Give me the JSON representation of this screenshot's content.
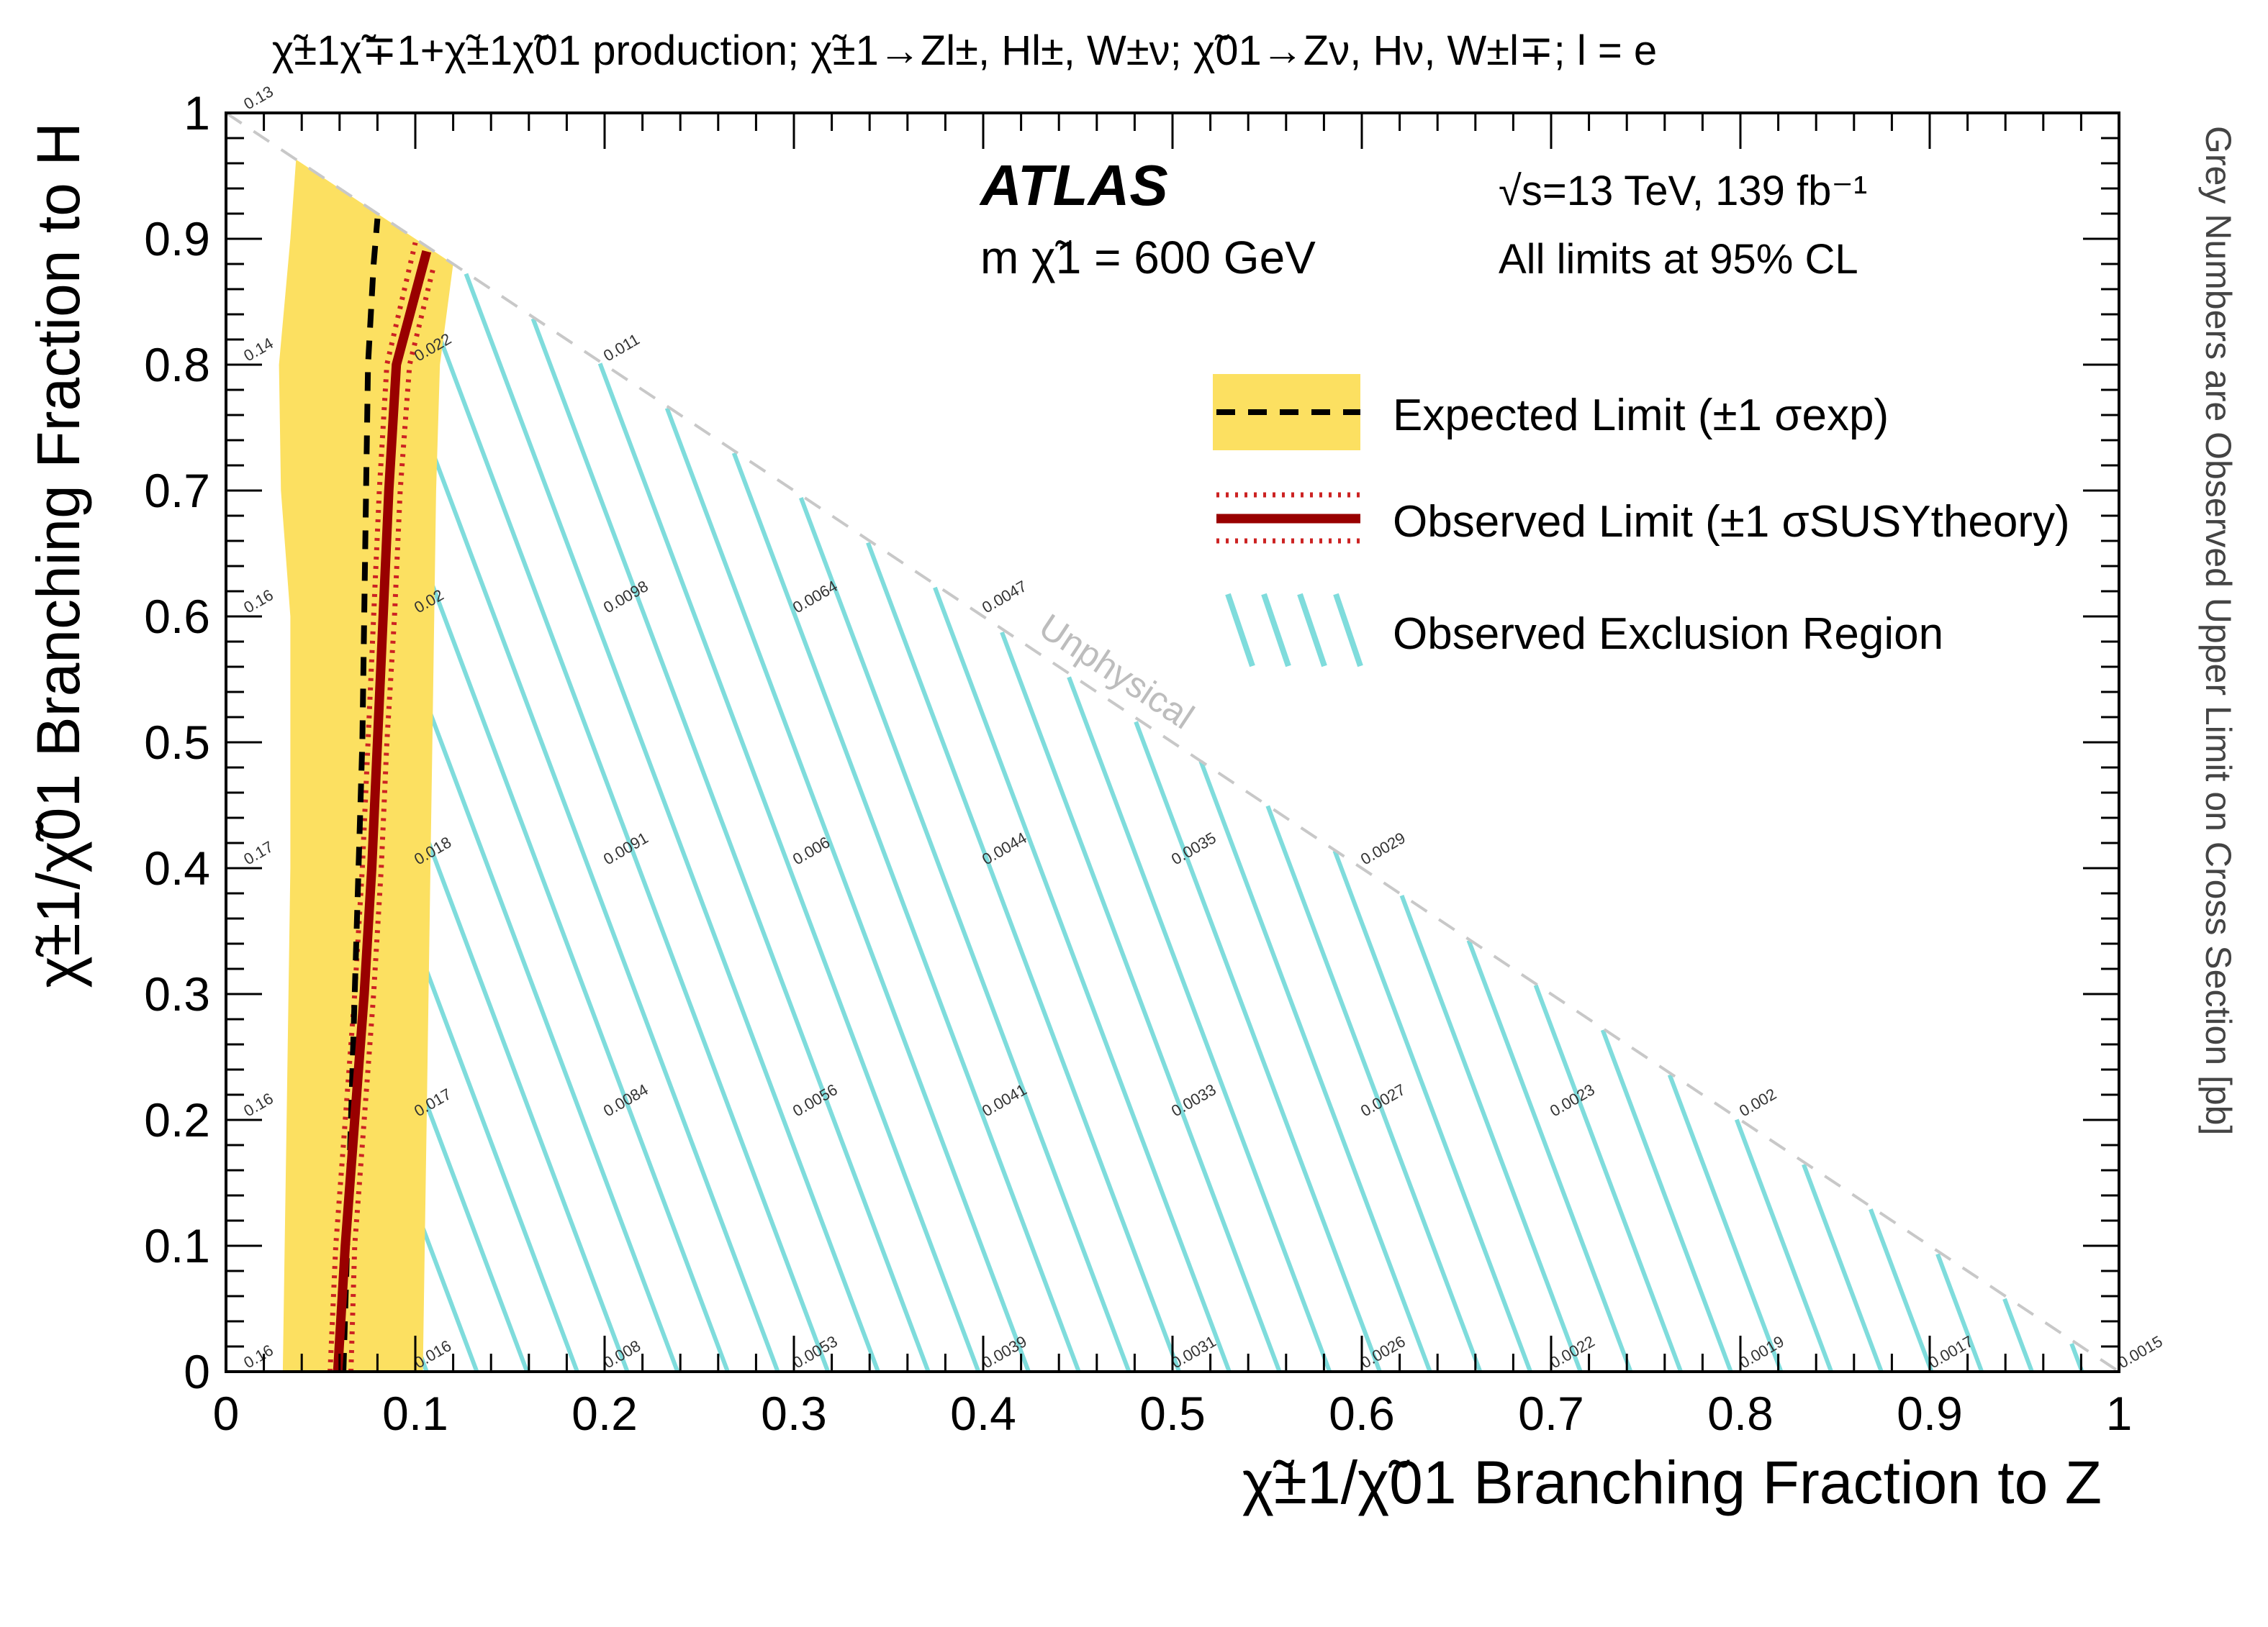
{
  "chart_data": {
    "type": "contour",
    "title": "χ̃±1χ̃∓1+χ̃±1χ̃01 production; χ̃±1→Zl±, Hl±, W±ν; χ̃01→Zν, Hν, W±l∓; l = e",
    "experiment": "ATLAS",
    "mass_label": "m χ̃1 = 600 GeV",
    "energy_label": "√s=13 TeV, 139 fb⁻¹",
    "cl_label": "All limits at 95% CL",
    "xlabel": "χ̃±1/χ̃01 Branching Fraction to Z",
    "ylabel": "χ̃±1/χ̃01 Branching Fraction to H",
    "zlabel": "Grey Numbers are Observed Upper Limit on Cross Section [pb]",
    "unphysical_label": "Unphysical",
    "xlim": [
      0,
      1
    ],
    "ylim": [
      0,
      1
    ],
    "x_ticks": [
      "0",
      "0.1",
      "0.2",
      "0.3",
      "0.4",
      "0.5",
      "0.6",
      "0.7",
      "0.8",
      "0.9",
      "1"
    ],
    "y_ticks": [
      "0",
      "0.1",
      "0.2",
      "0.3",
      "0.4",
      "0.5",
      "0.6",
      "0.7",
      "0.8",
      "0.9",
      "1"
    ],
    "legend": {
      "position": "top-right",
      "entries": [
        "Expected Limit (±1 σexp)",
        "Observed Limit (±1 σSUSYtheory)",
        "Observed Exclusion Region"
      ]
    },
    "colors": {
      "band": "#fce061",
      "expected": "#000000",
      "observed": "#990000",
      "theory": "#cc2222",
      "hatch": "#7fdcdc",
      "diagonal": "#c8c8c8",
      "numbers": "#333333"
    },
    "expected_limit": [
      [
        0.062,
        0.0
      ],
      [
        0.064,
        0.1
      ],
      [
        0.066,
        0.2
      ],
      [
        0.068,
        0.3
      ],
      [
        0.07,
        0.4
      ],
      [
        0.072,
        0.5
      ],
      [
        0.073,
        0.6
      ],
      [
        0.074,
        0.7
      ],
      [
        0.075,
        0.8
      ],
      [
        0.078,
        0.88
      ],
      [
        0.08,
        0.916
      ]
    ],
    "expected_band_low": [
      [
        0.03,
        0.0
      ],
      [
        0.031,
        0.1
      ],
      [
        0.032,
        0.2
      ],
      [
        0.033,
        0.3
      ],
      [
        0.034,
        0.4
      ],
      [
        0.034,
        0.5
      ],
      [
        0.034,
        0.6
      ],
      [
        0.029,
        0.7
      ],
      [
        0.028,
        0.8
      ],
      [
        0.034,
        0.9
      ],
      [
        0.037,
        0.963
      ]
    ],
    "expected_band_high": [
      [
        0.104,
        0.0
      ],
      [
        0.105,
        0.1
      ],
      [
        0.106,
        0.2
      ],
      [
        0.107,
        0.3
      ],
      [
        0.108,
        0.4
      ],
      [
        0.109,
        0.5
      ],
      [
        0.11,
        0.6
      ],
      [
        0.111,
        0.7
      ],
      [
        0.113,
        0.8
      ],
      [
        0.12,
        0.88
      ]
    ],
    "observed_limit": [
      [
        0.059,
        0.0
      ],
      [
        0.063,
        0.1
      ],
      [
        0.068,
        0.2
      ],
      [
        0.073,
        0.3
      ],
      [
        0.077,
        0.4
      ],
      [
        0.08,
        0.5
      ],
      [
        0.083,
        0.6
      ],
      [
        0.086,
        0.7
      ],
      [
        0.09,
        0.8
      ],
      [
        0.106,
        0.89
      ]
    ],
    "observed_theory_low": [
      [
        0.055,
        0.0
      ],
      [
        0.058,
        0.1
      ],
      [
        0.063,
        0.2
      ],
      [
        0.068,
        0.3
      ],
      [
        0.072,
        0.4
      ],
      [
        0.075,
        0.5
      ],
      [
        0.078,
        0.6
      ],
      [
        0.081,
        0.7
      ],
      [
        0.085,
        0.8
      ],
      [
        0.1,
        0.897
      ]
    ],
    "observed_theory_high": [
      [
        0.066,
        0.0
      ],
      [
        0.068,
        0.1
      ],
      [
        0.073,
        0.2
      ],
      [
        0.078,
        0.3
      ],
      [
        0.082,
        0.4
      ],
      [
        0.085,
        0.5
      ],
      [
        0.089,
        0.6
      ],
      [
        0.092,
        0.7
      ],
      [
        0.097,
        0.8
      ],
      [
        0.11,
        0.88
      ]
    ],
    "upper_limits": [
      {
        "x": 0.01,
        "y": 0.0,
        "label": "0.16"
      },
      {
        "x": 0.1,
        "y": 0.0,
        "label": "0.016"
      },
      {
        "x": 0.2,
        "y": 0.0,
        "label": "0.008"
      },
      {
        "x": 0.3,
        "y": 0.0,
        "label": "0.0053"
      },
      {
        "x": 0.4,
        "y": 0.0,
        "label": "0.0039"
      },
      {
        "x": 0.5,
        "y": 0.0,
        "label": "0.0031"
      },
      {
        "x": 0.6,
        "y": 0.0,
        "label": "0.0026"
      },
      {
        "x": 0.7,
        "y": 0.0,
        "label": "0.0022"
      },
      {
        "x": 0.8,
        "y": 0.0,
        "label": "0.0019"
      },
      {
        "x": 0.9,
        "y": 0.0,
        "label": "0.0017"
      },
      {
        "x": 1.0,
        "y": 0.0,
        "label": "0.0015"
      },
      {
        "x": 0.01,
        "y": 0.2,
        "label": "0.16"
      },
      {
        "x": 0.1,
        "y": 0.2,
        "label": "0.017"
      },
      {
        "x": 0.2,
        "y": 0.2,
        "label": "0.0084"
      },
      {
        "x": 0.3,
        "y": 0.2,
        "label": "0.0056"
      },
      {
        "x": 0.4,
        "y": 0.2,
        "label": "0.0041"
      },
      {
        "x": 0.5,
        "y": 0.2,
        "label": "0.0033"
      },
      {
        "x": 0.6,
        "y": 0.2,
        "label": "0.0027"
      },
      {
        "x": 0.7,
        "y": 0.2,
        "label": "0.0023"
      },
      {
        "x": 0.8,
        "y": 0.2,
        "label": "0.002"
      },
      {
        "x": 0.01,
        "y": 0.4,
        "label": "0.17"
      },
      {
        "x": 0.1,
        "y": 0.4,
        "label": "0.018"
      },
      {
        "x": 0.2,
        "y": 0.4,
        "label": "0.0091"
      },
      {
        "x": 0.3,
        "y": 0.4,
        "label": "0.006"
      },
      {
        "x": 0.4,
        "y": 0.4,
        "label": "0.0044"
      },
      {
        "x": 0.5,
        "y": 0.4,
        "label": "0.0035"
      },
      {
        "x": 0.6,
        "y": 0.4,
        "label": "0.0029"
      },
      {
        "x": 0.01,
        "y": 0.6,
        "label": "0.16"
      },
      {
        "x": 0.1,
        "y": 0.6,
        "label": "0.02"
      },
      {
        "x": 0.2,
        "y": 0.6,
        "label": "0.0098"
      },
      {
        "x": 0.3,
        "y": 0.6,
        "label": "0.0064"
      },
      {
        "x": 0.4,
        "y": 0.6,
        "label": "0.0047"
      },
      {
        "x": 0.01,
        "y": 0.8,
        "label": "0.14"
      },
      {
        "x": 0.1,
        "y": 0.8,
        "label": "0.022"
      },
      {
        "x": 0.2,
        "y": 0.8,
        "label": "0.011"
      },
      {
        "x": 0.01,
        "y": 1.0,
        "label": "0.13"
      }
    ]
  }
}
